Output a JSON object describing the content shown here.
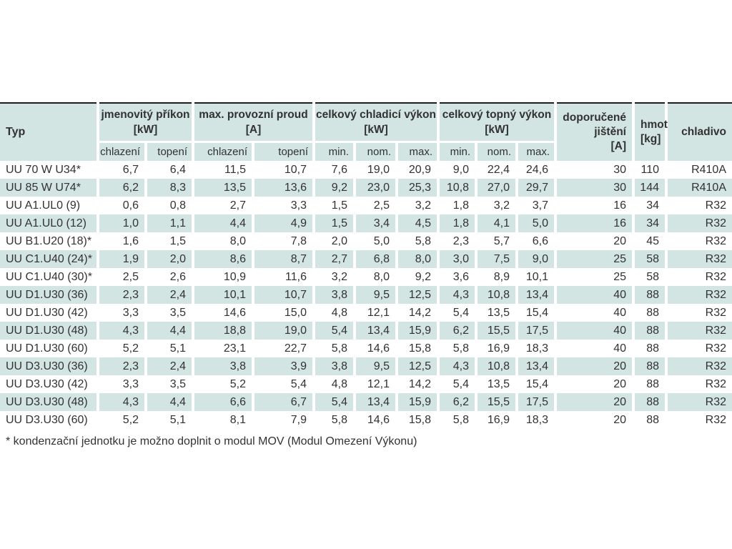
{
  "colors": {
    "cell_bg": "#d2e5e2",
    "text": "#323232",
    "header_top_border": "#1c1c1c"
  },
  "table": {
    "corner_header": "Typ",
    "groups": [
      {
        "label": "jmenovitý příkon",
        "unit": "[kW]",
        "subs": [
          "chlazení",
          "topení"
        ]
      },
      {
        "label": "max. provozní proud",
        "unit": "[A]",
        "subs": [
          "chlazení",
          "topení"
        ]
      },
      {
        "label": "celkový chladicí výkon",
        "unit": "[kW]",
        "subs": [
          "min.",
          "nom.",
          "max."
        ]
      },
      {
        "label": "celkový topný výkon",
        "unit": "[kW]",
        "subs": [
          "min.",
          "nom.",
          "max."
        ]
      }
    ],
    "tail_headers": [
      {
        "lines": [
          "doporučené",
          "jištění",
          "[A]"
        ],
        "align": "right"
      },
      {
        "lines": [
          "hmot.",
          "[kg]"
        ],
        "align": "center"
      },
      {
        "lines": [
          "chladivo"
        ],
        "align": "right"
      }
    ],
    "rows": [
      {
        "typ": "UU 70 W U34*",
        "values": [
          "6,7",
          "6,4",
          "11,5",
          "10,7",
          "7,6",
          "19,0",
          "20,9",
          "9,0",
          "22,4",
          "24,6",
          "30",
          "110",
          "R410A"
        ]
      },
      {
        "typ": "UU 85 W U74*",
        "values": [
          "6,2",
          "8,3",
          "13,5",
          "13,6",
          "9,2",
          "23,0",
          "25,3",
          "10,8",
          "27,0",
          "29,7",
          "30",
          "144",
          "R410A"
        ]
      },
      {
        "typ": "UU A1.UL0 (9)",
        "values": [
          "0,6",
          "0,8",
          "2,7",
          "3,3",
          "1,5",
          "2,5",
          "3,2",
          "1,8",
          "3,2",
          "3,7",
          "16",
          "34",
          "R32"
        ]
      },
      {
        "typ": "UU A1.UL0 (12)",
        "values": [
          "1,0",
          "1,1",
          "4,4",
          "4,9",
          "1,5",
          "3,4",
          "4,5",
          "1,8",
          "4,1",
          "5,0",
          "16",
          "34",
          "R32"
        ]
      },
      {
        "typ": "UU B1.U20 (18)*",
        "values": [
          "1,6",
          "1,5",
          "8,0",
          "7,8",
          "2,0",
          "5,0",
          "5,8",
          "2,3",
          "5,7",
          "6,6",
          "20",
          "45",
          "R32"
        ]
      },
      {
        "typ": "UU C1.U40 (24)*",
        "values": [
          "1,9",
          "2,0",
          "8,6",
          "8,7",
          "2,7",
          "6,8",
          "8,0",
          "3,0",
          "7,5",
          "9,0",
          "25",
          "58",
          "R32"
        ]
      },
      {
        "typ": "UU C1.U40 (30)*",
        "values": [
          "2,5",
          "2,6",
          "10,9",
          "11,6",
          "3,2",
          "8,0",
          "9,2",
          "3,6",
          "8,9",
          "10,1",
          "25",
          "58",
          "R32"
        ]
      },
      {
        "typ": "UU D1.U30 (36)",
        "values": [
          "2,3",
          "2,4",
          "10,1",
          "10,7",
          "3,8",
          "9,5",
          "12,5",
          "4,3",
          "10,8",
          "13,4",
          "40",
          "88",
          "R32"
        ]
      },
      {
        "typ": "UU D1.U30 (42)",
        "values": [
          "3,3",
          "3,5",
          "14,6",
          "15,0",
          "4,8",
          "12,1",
          "14,2",
          "5,4",
          "13,5",
          "15,4",
          "40",
          "88",
          "R32"
        ]
      },
      {
        "typ": "UU D1.U30 (48)",
        "values": [
          "4,3",
          "4,4",
          "18,8",
          "19,0",
          "5,4",
          "13,4",
          "15,9",
          "6,2",
          "15,5",
          "17,5",
          "40",
          "88",
          "R32"
        ]
      },
      {
        "typ": "UU D1.U30 (60)",
        "values": [
          "5,2",
          "5,1",
          "23,1",
          "22,7",
          "5,8",
          "14,6",
          "15,8",
          "5,8",
          "16,9",
          "18,3",
          "40",
          "88",
          "R32"
        ]
      },
      {
        "typ": "UU D3.U30 (36)",
        "values": [
          "2,3",
          "2,4",
          "3,8",
          "3,9",
          "3,8",
          "9,5",
          "12,5",
          "4,3",
          "10,8",
          "13,4",
          "20",
          "88",
          "R32"
        ]
      },
      {
        "typ": "UU D3.U30 (42)",
        "values": [
          "3,3",
          "3,5",
          "5,2",
          "5,4",
          "4,8",
          "12,1",
          "14,2",
          "5,4",
          "13,5",
          "15,4",
          "20",
          "88",
          "R32"
        ]
      },
      {
        "typ": "UU D3.U30 (48)",
        "values": [
          "4,3",
          "4,4",
          "6,6",
          "6,7",
          "5,4",
          "13,4",
          "15,9",
          "6,2",
          "15,5",
          "17,5",
          "20",
          "88",
          "R32"
        ]
      },
      {
        "typ": "UU D3.U30 (60)",
        "values": [
          "5,2",
          "5,1",
          "8,1",
          "7,9",
          "5,8",
          "14,6",
          "15,8",
          "5,8",
          "16,9",
          "18,3",
          "20",
          "88",
          "R32"
        ]
      }
    ]
  },
  "footnote": "* kondenzační jednotku je možno doplnit o modul MOV (Modul Omezení Výkonu)"
}
